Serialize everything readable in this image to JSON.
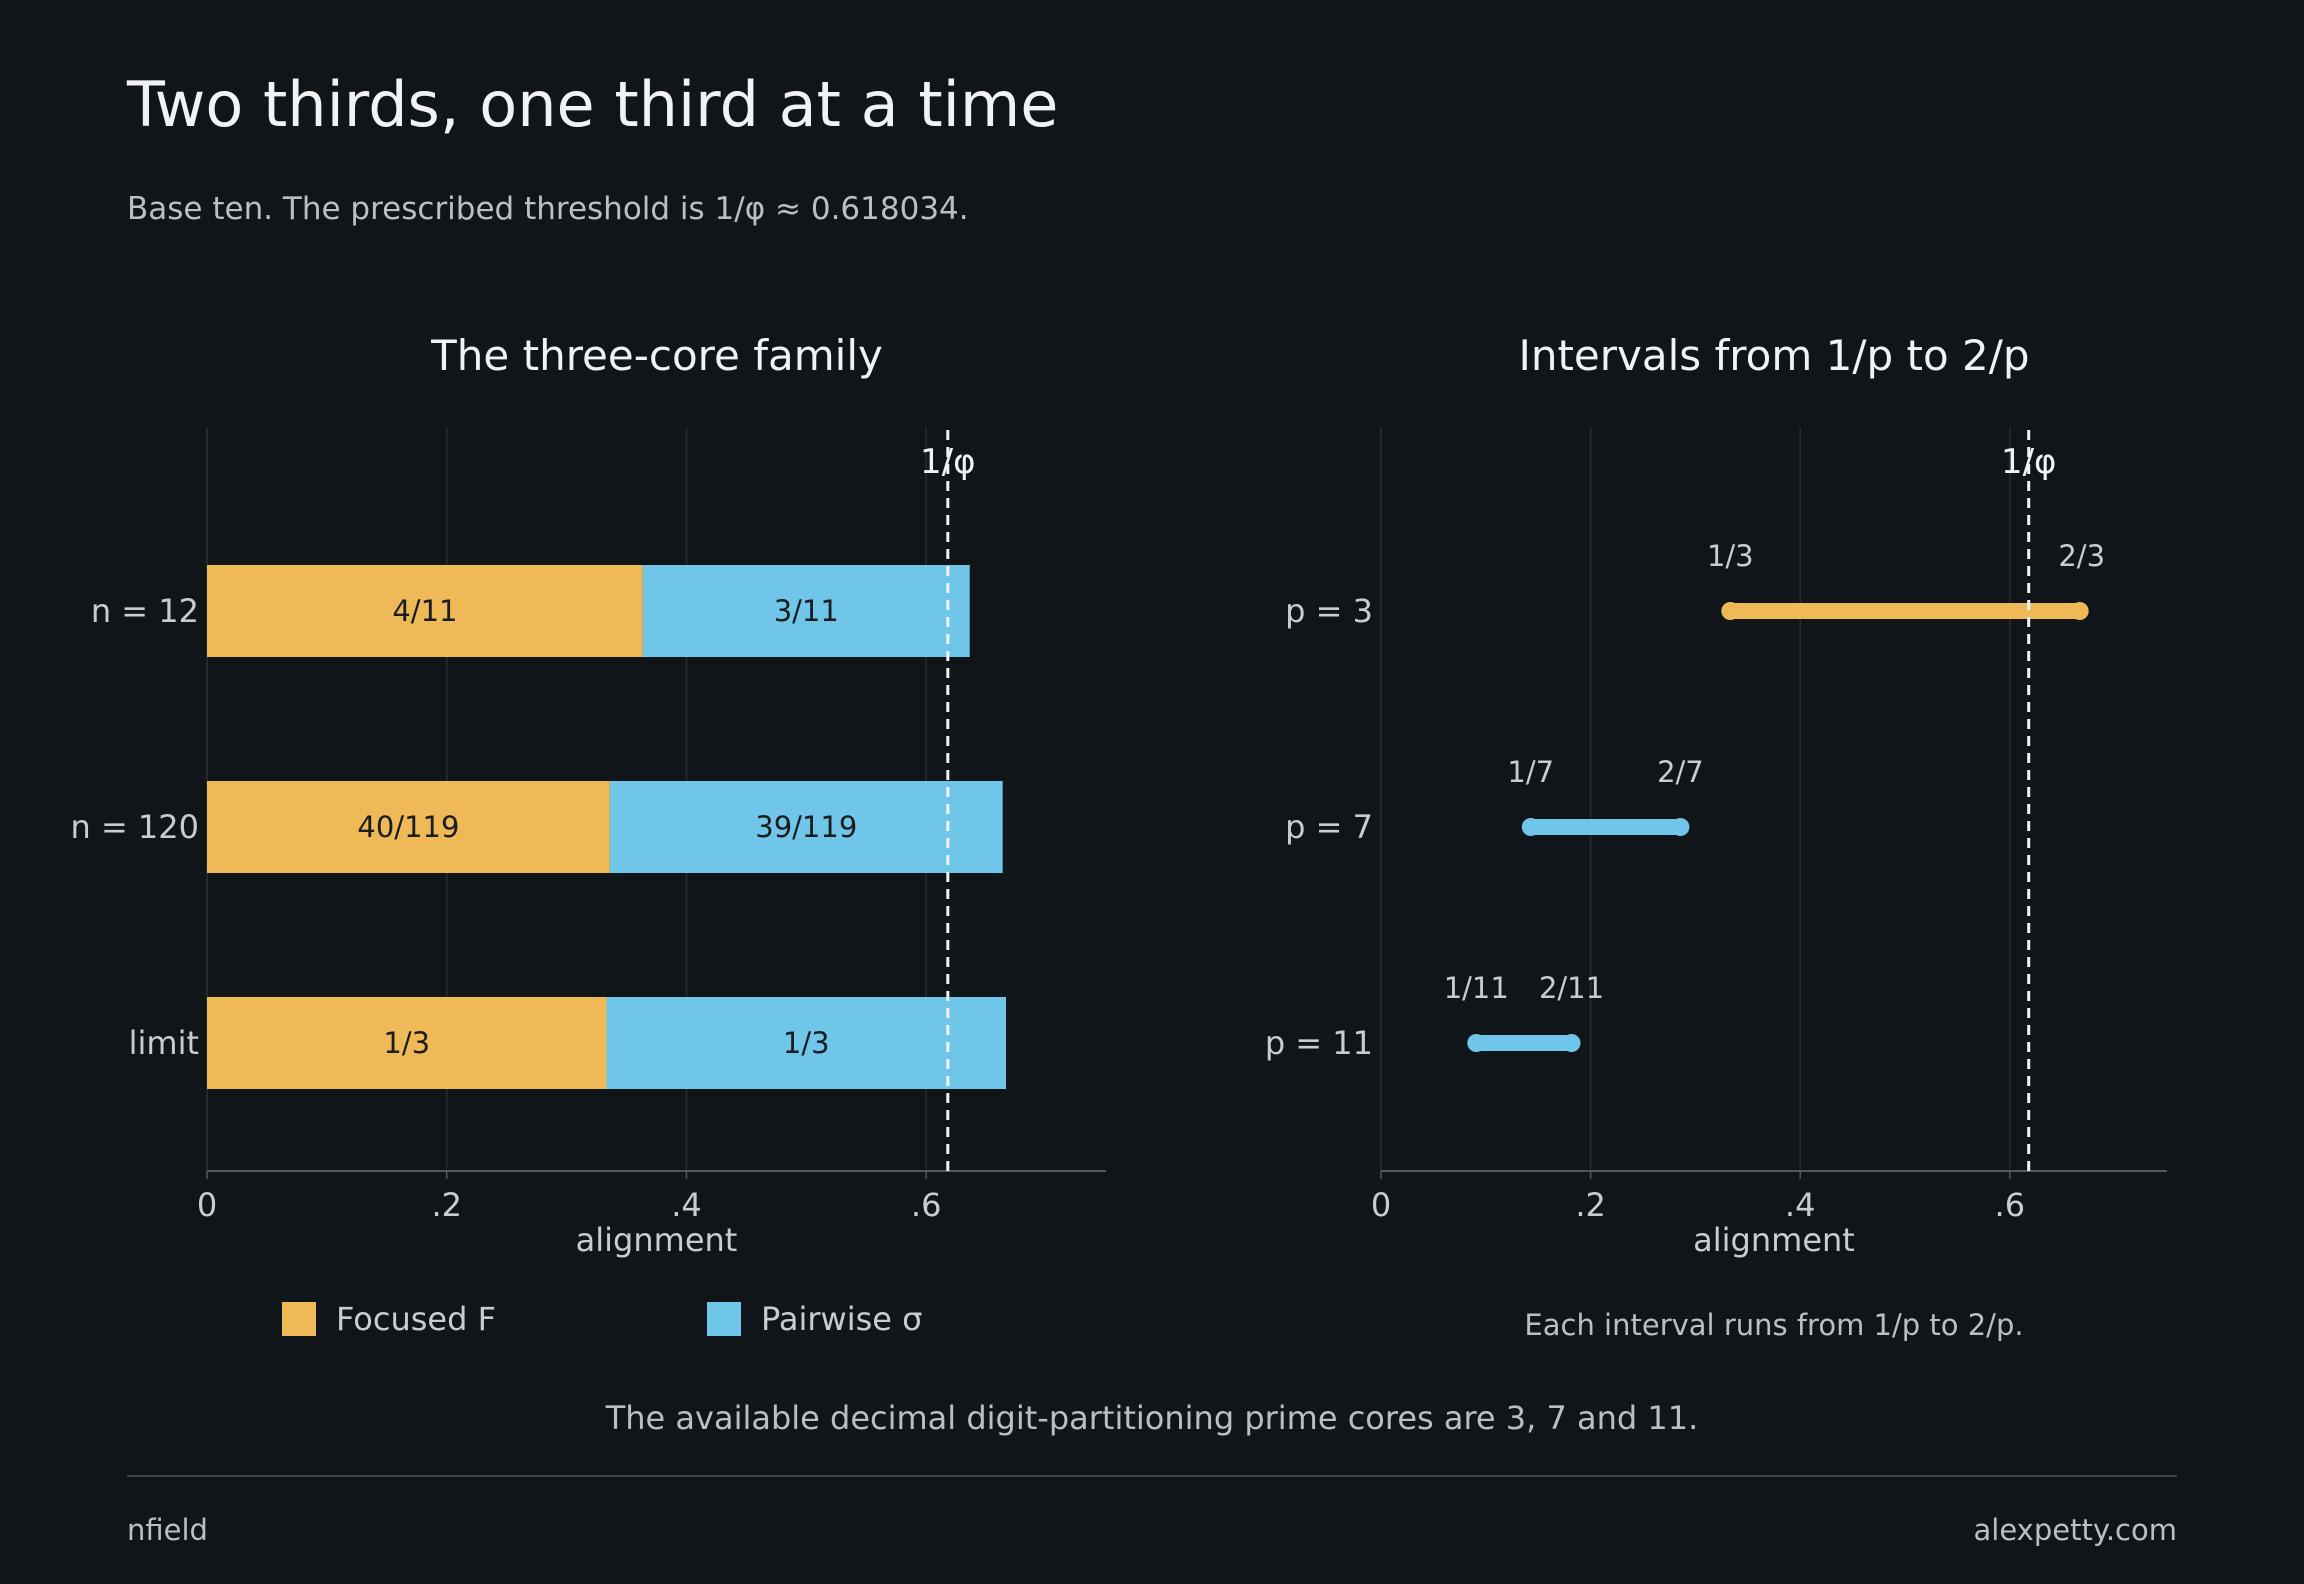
{
  "header": {
    "title": "Two thirds, one third at a time",
    "subtitle": "Base ten. The prescribed threshold is 1/φ ≈ 0.618034."
  },
  "footer": {
    "note": "The available decimal digit-partitioning prime cores are 3, 7 and 11.",
    "left": "nfield",
    "right": "alexpetty.com"
  },
  "colors": {
    "background": "#10151a",
    "focused": "#efb957",
    "pairwise": "#6fc6e8",
    "text": "#c9cdd1",
    "title": "#f0f2f3",
    "grid": "#272e34",
    "axis": "#4f5a60",
    "threshold": "#f0f2f3"
  },
  "chart_data": [
    {
      "type": "bar",
      "stacked": true,
      "orientation": "horizontal",
      "title": "The three-core family",
      "xlabel": "alignment",
      "xlim": [
        0,
        0.75
      ],
      "xticks": [
        0,
        0.2,
        0.4,
        0.6
      ],
      "xtick_labels": [
        "0",
        ".2",
        ".4",
        ".6"
      ],
      "grid": "vertical",
      "categories": [
        "n = 12",
        "n = 120",
        "limit"
      ],
      "series": [
        {
          "name": "Focused F",
          "color": "#efb957",
          "values": [
            0.3636,
            0.3361,
            0.3333
          ],
          "labels": [
            "4/11",
            "40/119",
            "1/3"
          ]
        },
        {
          "name": "Pairwise σ",
          "color": "#6fc6e8",
          "values": [
            0.2727,
            0.3277,
            0.3333
          ],
          "labels": [
            "3/11",
            "39/119",
            "1/3"
          ]
        }
      ],
      "threshold": {
        "value": 0.618034,
        "label": "1/φ"
      },
      "legend": "bottom"
    },
    {
      "type": "interval",
      "title": "Intervals from 1/p to 2/p",
      "xlabel": "alignment",
      "xlim": [
        0,
        0.75
      ],
      "xticks": [
        0,
        0.2,
        0.4,
        0.6
      ],
      "xtick_labels": [
        "0",
        ".2",
        ".4",
        ".6"
      ],
      "grid": "vertical",
      "categories": [
        "p = 3",
        "p = 7",
        "p = 11"
      ],
      "intervals": [
        {
          "start": 0.3333,
          "end": 0.6667,
          "start_label": "1/3",
          "end_label": "2/3",
          "color": "#efb957"
        },
        {
          "start": 0.1429,
          "end": 0.2857,
          "start_label": "1/7",
          "end_label": "2/7",
          "color": "#6fc6e8"
        },
        {
          "start": 0.0909,
          "end": 0.1818,
          "start_label": "1/11",
          "end_label": "2/11",
          "color": "#6fc6e8"
        }
      ],
      "threshold": {
        "value": 0.618034,
        "label": "1/φ"
      },
      "caption": "Each interval runs from 1/p to 2/p."
    }
  ]
}
